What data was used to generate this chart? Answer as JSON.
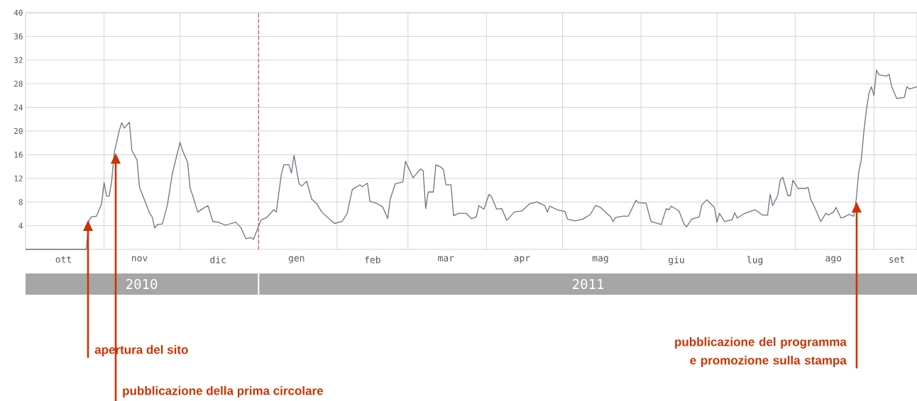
{
  "chart_data": {
    "type": "line",
    "color": "#6b7580",
    "x": [
      "2010-10-01",
      "2010-10-25",
      "2010-10-26",
      "2010-10-27",
      "2010-10-29",
      "2010-10-31",
      "2010-11-01",
      "2010-11-02",
      "2010-11-03",
      "2010-11-04",
      "2010-11-05",
      "2010-11-07",
      "2010-11-08",
      "2010-11-09",
      "2010-11-11",
      "2010-11-12",
      "2010-11-14",
      "2010-11-15",
      "2010-11-17",
      "2010-11-19",
      "2010-11-20",
      "2010-11-21",
      "2010-11-22",
      "2010-11-24",
      "2010-11-26",
      "2010-11-28",
      "2010-12-01",
      "2010-12-02",
      "2010-12-04",
      "2010-12-05",
      "2010-12-06",
      "2010-12-08",
      "2010-12-10",
      "2010-12-12",
      "2010-12-14",
      "2010-12-16",
      "2010-12-19",
      "2010-12-23",
      "2010-12-25",
      "2010-12-27",
      "2010-12-29",
      "2010-12-30",
      "2011-01-02",
      "2011-01-04",
      "2011-01-07",
      "2011-01-08",
      "2011-01-10",
      "2011-01-11",
      "2011-01-13",
      "2011-01-14",
      "2011-01-15",
      "2011-01-17",
      "2011-01-18",
      "2011-01-20",
      "2011-01-22",
      "2011-01-24",
      "2011-01-26",
      "2011-01-29",
      "2011-01-31",
      "2011-02-03",
      "2011-02-05",
      "2011-02-07",
      "2011-02-10",
      "2011-02-11",
      "2011-02-13",
      "2011-02-14",
      "2011-02-16",
      "2011-02-19",
      "2011-02-21",
      "2011-02-22",
      "2011-02-24",
      "2011-02-27",
      "2011-02-28",
      "2011-03-03",
      "2011-03-06",
      "2011-03-07",
      "2011-03-08",
      "2011-03-09",
      "2011-03-11",
      "2011-03-12",
      "2011-03-14",
      "2011-03-15",
      "2011-03-16",
      "2011-03-18",
      "2011-03-19",
      "2011-03-21",
      "2011-03-24",
      "2011-03-26",
      "2011-03-28",
      "2011-03-29",
      "2011-03-31",
      "2011-04-02",
      "2011-04-03",
      "2011-04-05",
      "2011-04-07",
      "2011-04-09",
      "2011-04-12",
      "2011-04-15",
      "2011-04-18",
      "2011-04-21",
      "2011-04-24",
      "2011-04-25",
      "2011-04-26",
      "2011-04-29",
      "2011-05-02",
      "2011-05-03",
      "2011-05-06",
      "2011-05-09",
      "2011-05-12",
      "2011-05-14",
      "2011-05-16",
      "2011-05-18",
      "2011-05-20",
      "2011-05-21",
      "2011-05-22",
      "2011-05-25",
      "2011-05-27",
      "2011-05-30",
      "2011-05-31",
      "2011-06-03",
      "2011-06-05",
      "2011-06-09",
      "2011-06-11",
      "2011-06-12",
      "2011-06-13",
      "2011-06-16",
      "2011-06-18",
      "2011-06-19",
      "2011-06-21",
      "2011-06-24",
      "2011-06-25",
      "2011-06-27",
      "2011-06-30",
      "2011-07-01",
      "2011-07-02",
      "2011-07-04",
      "2011-07-07",
      "2011-07-08",
      "2011-07-09",
      "2011-07-12",
      "2011-07-16",
      "2011-07-19",
      "2011-07-21",
      "2011-07-22",
      "2011-07-23",
      "2011-07-25",
      "2011-07-26",
      "2011-07-27",
      "2011-07-29",
      "2011-07-30",
      "2011-07-31",
      "2011-08-02",
      "2011-08-05",
      "2011-08-06",
      "2011-08-07",
      "2011-08-09",
      "2011-08-11",
      "2011-08-13",
      "2011-08-14",
      "2011-08-16",
      "2011-08-17",
      "2011-08-19",
      "2011-08-20",
      "2011-08-22",
      "2011-08-24",
      "2011-08-25",
      "2011-08-26",
      "2011-08-27",
      "2011-08-28",
      "2011-08-29",
      "2011-08-30",
      "2011-08-31",
      "2011-09-01",
      "2011-09-02",
      "2011-09-03",
      "2011-09-06",
      "2011-09-07",
      "2011-09-08",
      "2011-09-10",
      "2011-09-13",
      "2011-09-14",
      "2011-09-15",
      "2011-09-18"
    ],
    "values": [
      0,
      0,
      4.9,
      5.5,
      5.6,
      7.7,
      11.3,
      9.0,
      9.0,
      11.5,
      16.3,
      20.1,
      21.4,
      20.5,
      21.5,
      16.7,
      15.1,
      10.5,
      8.3,
      6.1,
      5.5,
      3.6,
      4.2,
      4.3,
      7.5,
      12.9,
      18.1,
      16.7,
      14.7,
      10.3,
      9.1,
      6.3,
      6.9,
      7.4,
      4.7,
      4.6,
      4.1,
      4.6,
      3.7,
      1.8,
      2.0,
      1.7,
      5.0,
      5.3,
      6.7,
      6.3,
      12.7,
      14.3,
      14.3,
      12.9,
      15.9,
      11.1,
      10.7,
      11.5,
      8.5,
      7.7,
      6.3,
      5.1,
      4.4,
      4.7,
      6.1,
      10.1,
      10.9,
      10.6,
      11.2,
      8.1,
      7.9,
      7.2,
      5.2,
      8.5,
      11.1,
      11.4,
      14.9,
      12.1,
      13.6,
      13.3,
      6.9,
      9.7,
      9.7,
      14.3,
      13.9,
      13.5,
      10.9,
      10.9,
      5.7,
      6.1,
      6.1,
      5.2,
      5.5,
      7.4,
      6.8,
      9.3,
      8.9,
      6.8,
      6.9,
      4.9,
      6.3,
      6.5,
      7.7,
      8.0,
      7.4,
      6.3,
      7.3,
      6.7,
      6.4,
      5.1,
      4.8,
      5.1,
      5.9,
      7.4,
      7.1,
      6.3,
      5.5,
      4.7,
      5.4,
      5.6,
      5.6,
      8.3,
      7.9,
      7.8,
      4.7,
      4.2,
      6.9,
      6.7,
      7.3,
      6.5,
      4.3,
      3.8,
      5.1,
      5.5,
      7.5,
      8.4,
      7.1,
      4.6,
      6.1,
      4.7,
      5.0,
      6.2,
      5.3,
      6.1,
      6.7,
      5.8,
      5.8,
      9.3,
      7.4,
      9.1,
      11.7,
      12.2,
      9.1,
      9.1,
      11.7,
      10.3,
      10.3,
      10.5,
      8.5,
      6.7,
      4.7,
      6.1,
      5.8,
      6.3,
      7.1,
      5.3,
      5.4,
      5.9,
      5.6,
      8.5,
      13.1,
      15.1,
      19.9,
      23.5,
      26.3,
      27.5,
      26.0,
      30.3,
      29.5,
      29.3,
      29.6,
      27.5,
      25.5,
      25.7,
      27.5,
      27.1,
      27.5
    ],
    "xlim": [
      "2010-10-01",
      "2011-09-18"
    ],
    "xticks": [
      {
        "value": "2010-10-16",
        "label": "ott"
      },
      {
        "value": "2010-11-01",
        "label": null
      },
      {
        "value": "2010-11-15",
        "label": "nov"
      },
      {
        "value": "2010-12-01",
        "label": null
      },
      {
        "value": "2010-12-16",
        "label": "dic"
      },
      {
        "value": "2011-01-01",
        "label": null
      },
      {
        "value": "2011-01-16",
        "label": "gen"
      },
      {
        "value": "2011-02-01",
        "label": null
      },
      {
        "value": "2011-02-15",
        "label": "feb"
      },
      {
        "value": "2011-03-01",
        "label": null
      },
      {
        "value": "2011-03-16",
        "label": "mar"
      },
      {
        "value": "2011-04-01",
        "label": null
      },
      {
        "value": "2011-04-15",
        "label": "apr"
      },
      {
        "value": "2011-05-01",
        "label": null
      },
      {
        "value": "2011-05-16",
        "label": "mag"
      },
      {
        "value": "2011-06-01",
        "label": null
      },
      {
        "value": "2011-06-15",
        "label": "giu"
      },
      {
        "value": "2011-07-01",
        "label": null
      },
      {
        "value": "2011-07-16",
        "label": "lug"
      },
      {
        "value": "2011-08-01",
        "label": null
      },
      {
        "value": "2011-08-16",
        "label": "ago"
      },
      {
        "value": "2011-09-01",
        "label": null
      },
      {
        "value": "2011-09-10",
        "label": "set"
      }
    ],
    "ylim": [
      0,
      40
    ],
    "yticks": [
      4,
      8,
      12,
      16,
      20,
      24,
      28,
      32,
      36,
      40
    ],
    "grid": true,
    "ref_lines": [
      {
        "axis": "x",
        "value": "2011-01-01",
        "color": "#cc3333",
        "line_style": "dashed"
      }
    ],
    "annotations": [
      "2010",
      "2011",
      "apertura del sito",
      "pubblicazione della prima circolare",
      "pubblicazione del programma e promozione sulla stampa"
    ]
  }
}
